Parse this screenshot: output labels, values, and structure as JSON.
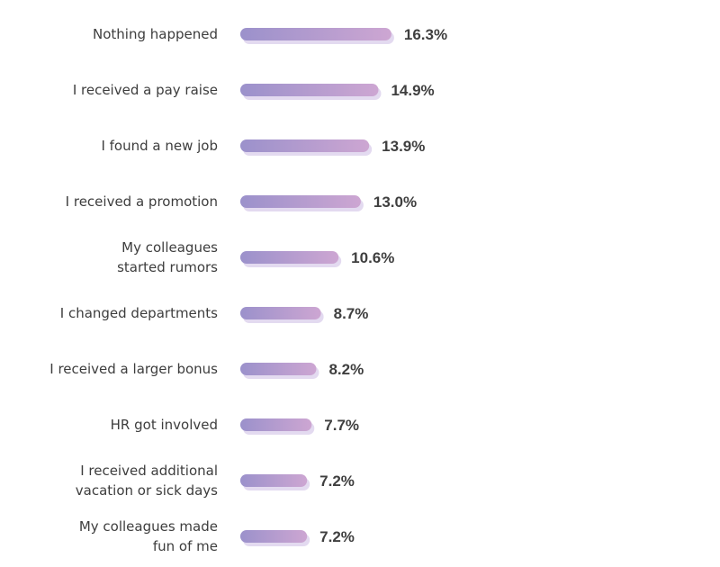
{
  "chart_data": {
    "type": "bar",
    "orientation": "horizontal",
    "categories": [
      [
        "Nothing happened"
      ],
      [
        "I received a pay raise"
      ],
      [
        "I found a new job"
      ],
      [
        "I received a promotion"
      ],
      [
        "My colleagues",
        "started rumors"
      ],
      [
        "I changed departments"
      ],
      [
        "I received a larger bonus"
      ],
      [
        "HR got involved"
      ],
      [
        "I received additional",
        "vacation or sick days"
      ],
      [
        "My colleagues made",
        "fun of me"
      ]
    ],
    "values": [
      16.3,
      14.9,
      13.9,
      13.0,
      10.6,
      8.7,
      8.2,
      7.7,
      7.2,
      7.2
    ],
    "value_labels": [
      "16.3%",
      "14.9%",
      "13.9%",
      "13.0%",
      "10.6%",
      "8.7%",
      "8.2%",
      "7.7%",
      "7.2%",
      "7.2%"
    ],
    "title": "",
    "xlabel": "",
    "ylabel": "",
    "grid": false,
    "legend": "none",
    "colors": {
      "bar_start": "#9b91cb",
      "bar_end": "#cda6d2",
      "bar_shadow": "#e3daf0",
      "label_text": "#3d3d3d",
      "value_text": "#3f3f3f"
    }
  }
}
